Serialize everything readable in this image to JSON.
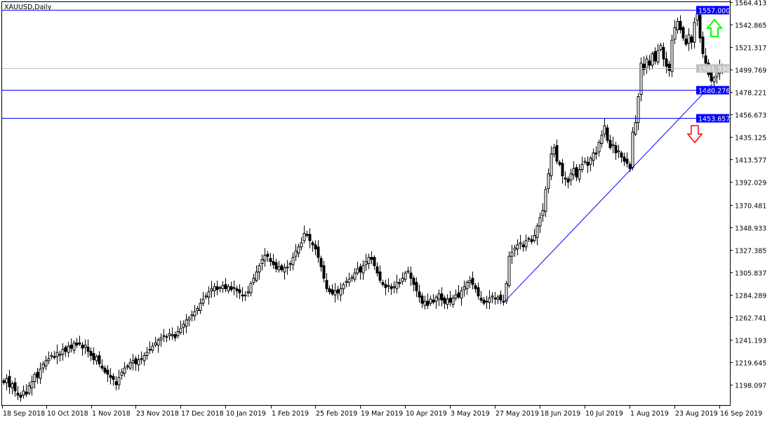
{
  "title": "XAUUSD,Daily",
  "chart_data": {
    "type": "candlestick",
    "title": "XAUUSD,Daily",
    "ylim": [
      1187.0,
      1564.413
    ],
    "y_ticks": [
      "1564.413",
      "1542.865",
      "1521.317",
      "1499.769",
      "1478.221",
      "1456.673",
      "1435.125",
      "1413.577",
      "1392.029",
      "1370.481",
      "1348.933",
      "1327.385",
      "1305.837",
      "1284.289",
      "1262.741",
      "1241.193",
      "1219.645",
      "1198.097"
    ],
    "x_ticks": [
      "18 Sep 2018",
      "10 Oct 2018",
      "1 Nov 2018",
      "23 Nov 2018",
      "17 Dec 2018",
      "10 Jan 2019",
      "1 Feb 2019",
      "25 Feb 2019",
      "19 Mar 2019",
      "10 Apr 2019",
      "3 May 2019",
      "27 May 2019",
      "18 Jun 2019",
      "10 Jul 2019",
      "1 Aug 2019",
      "23 Aug 2019",
      "16 Sep 2019"
    ],
    "closes": [
      1200,
      1204,
      1196,
      1199,
      1192,
      1188,
      1186,
      1192,
      1189,
      1197,
      1201,
      1208,
      1205,
      1213,
      1218,
      1221,
      1223,
      1226,
      1224,
      1229,
      1227,
      1232,
      1230,
      1235,
      1233,
      1238,
      1236,
      1237,
      1233,
      1236,
      1230,
      1226,
      1222,
      1225,
      1218,
      1214,
      1210,
      1208,
      1205,
      1203,
      1198,
      1205,
      1210,
      1214,
      1216,
      1219,
      1221,
      1218,
      1222,
      1223,
      1226,
      1229,
      1232,
      1235,
      1238,
      1241,
      1243,
      1245,
      1244,
      1247,
      1246,
      1243,
      1249,
      1252,
      1256,
      1260,
      1262,
      1265,
      1268,
      1271,
      1276,
      1280,
      1283,
      1287,
      1290,
      1292,
      1289,
      1291,
      1293,
      1290,
      1292,
      1289,
      1291,
      1288,
      1286,
      1283,
      1284,
      1287,
      1295,
      1300,
      1306,
      1312,
      1318,
      1322,
      1321,
      1316,
      1313,
      1309,
      1311,
      1308,
      1310,
      1311,
      1314,
      1320,
      1326,
      1330,
      1334,
      1343,
      1341,
      1336,
      1332,
      1328,
      1320,
      1311,
      1300,
      1290,
      1287,
      1285,
      1288,
      1286,
      1290,
      1294,
      1297,
      1299,
      1301,
      1305,
      1309,
      1306,
      1312,
      1316,
      1320,
      1318,
      1312,
      1305,
      1298,
      1294,
      1291,
      1293,
      1290,
      1292,
      1296,
      1295,
      1300,
      1305,
      1307,
      1300,
      1294,
      1288,
      1282,
      1276,
      1278,
      1274,
      1280,
      1277,
      1282,
      1285,
      1279,
      1276,
      1280,
      1277,
      1281,
      1284,
      1282,
      1288,
      1292,
      1296,
      1298,
      1294,
      1290,
      1283,
      1279,
      1276,
      1278,
      1281,
      1283,
      1280,
      1282,
      1279,
      1277,
      1295,
      1321,
      1325,
      1329,
      1332,
      1334,
      1330,
      1336,
      1338,
      1335,
      1341,
      1350,
      1358,
      1365,
      1385,
      1400,
      1419,
      1425,
      1412,
      1409,
      1398,
      1395,
      1392,
      1400,
      1405,
      1397,
      1404,
      1409,
      1412,
      1408,
      1415,
      1420,
      1419,
      1430,
      1437,
      1446,
      1432,
      1425,
      1428,
      1420,
      1422,
      1416,
      1412,
      1410,
      1405,
      1440,
      1449,
      1474,
      1506,
      1500,
      1510,
      1504,
      1515,
      1508,
      1518,
      1523,
      1510,
      1503,
      1499,
      1528,
      1540,
      1546,
      1538,
      1530,
      1524,
      1533,
      1526,
      1545,
      1553,
      1530,
      1515,
      1506,
      1495,
      1489,
      1492,
      1498,
      1503,
      1501
    ],
    "horizontal_levels": [
      {
        "label": "1557.000",
        "value": 1557.0
      },
      {
        "label": "1480.276",
        "value": 1480.276
      },
      {
        "label": "1453.657",
        "value": 1453.657
      }
    ],
    "bid": {
      "label": "1501.330",
      "value": 1501.33
    },
    "trendline": {
      "from": {
        "date": "27 May 2019",
        "price": 1277
      },
      "to": {
        "date": "12 Sep 2019",
        "price": 1486
      }
    },
    "arrows": [
      {
        "direction": "up",
        "color": "#00ff00"
      },
      {
        "direction": "down",
        "color": "#ff0000"
      }
    ],
    "colors": {
      "level": "#0000ff",
      "bid": "#c0c0c0",
      "candle": "#000000"
    }
  }
}
